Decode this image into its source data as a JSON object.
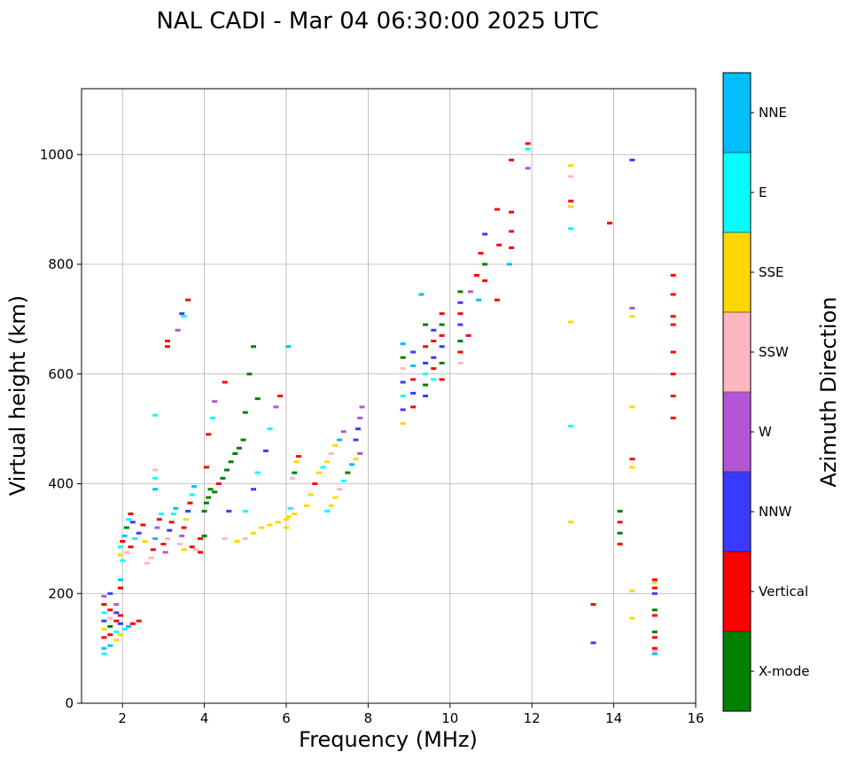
{
  "chart_data": {
    "type": "scatter",
    "title": "NAL CADI - Mar 04 06:30:00 2025 UTC",
    "xlabel": "Frequency (MHz)",
    "ylabel": "Virtual height (km)",
    "xlim": [
      1,
      16
    ],
    "ylim": [
      0,
      1120
    ],
    "xticks": [
      2,
      4,
      6,
      8,
      10,
      12,
      14,
      16
    ],
    "yticks": [
      0,
      200,
      400,
      600,
      800,
      1000
    ],
    "grid": true,
    "colorbar": {
      "label": "Azimuth Direction",
      "categories": [
        {
          "name": "X-mode",
          "color": "#008000"
        },
        {
          "name": "Vertical",
          "color": "#ff0000"
        },
        {
          "name": "NNW",
          "color": "#3a3aff"
        },
        {
          "name": "W",
          "color": "#b455d6"
        },
        {
          "name": "SSW",
          "color": "#ffb6c1"
        },
        {
          "name": "SSE",
          "color": "#ffd700"
        },
        {
          "name": "E",
          "color": "#00ffff"
        },
        {
          "name": "NNE",
          "color": "#00bfff"
        }
      ]
    },
    "trace_columns": [
      "frequency_mhz",
      "height_km",
      "direction"
    ],
    "points": [
      [
        1.55,
        90,
        "E"
      ],
      [
        1.55,
        100,
        "NNE"
      ],
      [
        1.55,
        120,
        "Vertical"
      ],
      [
        1.55,
        135,
        "SSE"
      ],
      [
        1.55,
        150,
        "NNW"
      ],
      [
        1.55,
        165,
        "E"
      ],
      [
        1.55,
        180,
        "Vertical"
      ],
      [
        1.55,
        195,
        "W"
      ],
      [
        1.7,
        105,
        "NNE"
      ],
      [
        1.7,
        125,
        "Vertical"
      ],
      [
        1.7,
        140,
        "X-mode"
      ],
      [
        1.7,
        155,
        "SSW"
      ],
      [
        1.7,
        170,
        "Vertical"
      ],
      [
        1.7,
        200,
        "NNW"
      ],
      [
        1.85,
        115,
        "SSE"
      ],
      [
        1.85,
        130,
        "E"
      ],
      [
        1.85,
        150,
        "Vertical"
      ],
      [
        1.85,
        165,
        "NNW"
      ],
      [
        1.85,
        180,
        "W"
      ],
      [
        1.95,
        125,
        "SSE"
      ],
      [
        1.95,
        145,
        "NNW"
      ],
      [
        1.95,
        160,
        "Vertical"
      ],
      [
        1.95,
        210,
        "Vertical"
      ],
      [
        1.95,
        225,
        "NNE"
      ],
      [
        2.05,
        135,
        "E"
      ],
      [
        2.15,
        140,
        "NNE"
      ],
      [
        2.25,
        145,
        "Vertical"
      ],
      [
        2.4,
        150,
        "Vertical"
      ],
      [
        1.95,
        270,
        "SSE"
      ],
      [
        1.95,
        285,
        "E"
      ],
      [
        2.0,
        295,
        "Vertical"
      ],
      [
        2.05,
        305,
        "NNE"
      ],
      [
        2.1,
        320,
        "X-mode"
      ],
      [
        2.15,
        335,
        "E"
      ],
      [
        2.2,
        345,
        "Vertical"
      ],
      [
        2.25,
        330,
        "NNW"
      ],
      [
        2.0,
        260,
        "E"
      ],
      [
        2.1,
        275,
        "SSW"
      ],
      [
        2.2,
        285,
        "Vertical"
      ],
      [
        2.3,
        300,
        "E"
      ],
      [
        2.4,
        310,
        "NNW"
      ],
      [
        2.5,
        325,
        "Vertical"
      ],
      [
        2.55,
        295,
        "SSE"
      ],
      [
        2.6,
        255,
        "SSW"
      ],
      [
        2.7,
        265,
        "SSW"
      ],
      [
        2.75,
        280,
        "Vertical"
      ],
      [
        2.8,
        300,
        "NNE"
      ],
      [
        2.85,
        320,
        "W"
      ],
      [
        2.9,
        335,
        "Vertical"
      ],
      [
        2.95,
        345,
        "E"
      ],
      [
        3.0,
        290,
        "Vertical"
      ],
      [
        3.05,
        275,
        "W"
      ],
      [
        3.1,
        300,
        "SSW"
      ],
      [
        3.15,
        315,
        "NNW"
      ],
      [
        3.2,
        330,
        "Vertical"
      ],
      [
        3.25,
        345,
        "E"
      ],
      [
        3.3,
        355,
        "NNE"
      ],
      [
        3.4,
        290,
        "SSW"
      ],
      [
        3.45,
        305,
        "W"
      ],
      [
        3.5,
        320,
        "Vertical"
      ],
      [
        3.55,
        335,
        "SSE"
      ],
      [
        3.6,
        350,
        "NNW"
      ],
      [
        3.65,
        365,
        "Vertical"
      ],
      [
        3.7,
        380,
        "E"
      ],
      [
        3.75,
        395,
        "NNE"
      ],
      [
        3.5,
        280,
        "SSE"
      ],
      [
        3.7,
        285,
        "Vertical"
      ],
      [
        3.8,
        280,
        "SSW"
      ],
      [
        3.9,
        275,
        "Vertical"
      ],
      [
        2.8,
        390,
        "NNE"
      ],
      [
        2.8,
        410,
        "E"
      ],
      [
        2.8,
        425,
        "SSW"
      ],
      [
        2.8,
        525,
        "E"
      ],
      [
        3.1,
        650,
        "Vertical"
      ],
      [
        3.1,
        660,
        "Vertical"
      ],
      [
        3.35,
        680,
        "W"
      ],
      [
        3.45,
        710,
        "NNW"
      ],
      [
        3.5,
        705,
        "E"
      ],
      [
        3.6,
        735,
        "Vertical"
      ],
      [
        3.9,
        300,
        "Vertical"
      ],
      [
        4.0,
        305,
        "X-mode"
      ],
      [
        4.0,
        350,
        "X-mode"
      ],
      [
        4.05,
        365,
        "X-mode"
      ],
      [
        4.1,
        375,
        "X-mode"
      ],
      [
        4.15,
        390,
        "X-mode"
      ],
      [
        4.25,
        385,
        "X-mode"
      ],
      [
        4.35,
        400,
        "Vertical"
      ],
      [
        4.45,
        410,
        "X-mode"
      ],
      [
        4.55,
        425,
        "X-mode"
      ],
      [
        4.65,
        440,
        "X-mode"
      ],
      [
        4.75,
        455,
        "X-mode"
      ],
      [
        4.85,
        465,
        "X-mode"
      ],
      [
        4.95,
        480,
        "X-mode"
      ],
      [
        4.05,
        430,
        "Vertical"
      ],
      [
        4.1,
        490,
        "Vertical"
      ],
      [
        4.2,
        520,
        "E"
      ],
      [
        4.25,
        550,
        "W"
      ],
      [
        4.5,
        585,
        "Vertical"
      ],
      [
        4.6,
        350,
        "NNW"
      ],
      [
        4.5,
        300,
        "SSW"
      ],
      [
        4.8,
        295,
        "SSE"
      ],
      [
        5.0,
        300,
        "SSW"
      ],
      [
        5.2,
        310,
        "SSE"
      ],
      [
        5.4,
        320,
        "SSE"
      ],
      [
        5.6,
        325,
        "SSE"
      ],
      [
        5.8,
        330,
        "SSE"
      ],
      [
        6.0,
        335,
        "SSE"
      ],
      [
        6.2,
        345,
        "SSE"
      ],
      [
        5.0,
        350,
        "E"
      ],
      [
        5.2,
        390,
        "NNW"
      ],
      [
        5.3,
        420,
        "E"
      ],
      [
        5.5,
        460,
        "NNW"
      ],
      [
        5.6,
        500,
        "E"
      ],
      [
        5.75,
        540,
        "W"
      ],
      [
        5.85,
        560,
        "Vertical"
      ],
      [
        5.0,
        530,
        "X-mode"
      ],
      [
        5.1,
        600,
        "X-mode"
      ],
      [
        5.2,
        650,
        "X-mode"
      ],
      [
        5.3,
        555,
        "X-mode"
      ],
      [
        6.0,
        320,
        "SSE"
      ],
      [
        6.05,
        340,
        "SSE"
      ],
      [
        6.1,
        355,
        "E"
      ],
      [
        6.15,
        410,
        "SSW"
      ],
      [
        6.2,
        420,
        "X-mode"
      ],
      [
        6.25,
        440,
        "SSE"
      ],
      [
        6.3,
        450,
        "Vertical"
      ],
      [
        6.05,
        650,
        "NNE"
      ],
      [
        6.5,
        360,
        "SSE"
      ],
      [
        6.6,
        380,
        "SSE"
      ],
      [
        6.7,
        400,
        "Vertical"
      ],
      [
        6.8,
        420,
        "SSE"
      ],
      [
        6.9,
        430,
        "E"
      ],
      [
        7.0,
        440,
        "SSE"
      ],
      [
        7.1,
        455,
        "SSW"
      ],
      [
        7.2,
        470,
        "SSE"
      ],
      [
        7.3,
        480,
        "NNE"
      ],
      [
        7.4,
        495,
        "W"
      ],
      [
        7.0,
        350,
        "E"
      ],
      [
        7.1,
        360,
        "SSE"
      ],
      [
        7.2,
        375,
        "SSE"
      ],
      [
        7.3,
        390,
        "SSW"
      ],
      [
        7.4,
        405,
        "E"
      ],
      [
        7.5,
        420,
        "X-mode"
      ],
      [
        7.6,
        435,
        "NNE"
      ],
      [
        7.7,
        445,
        "SSE"
      ],
      [
        7.8,
        455,
        "W"
      ],
      [
        7.7,
        480,
        "NNW"
      ],
      [
        7.75,
        500,
        "NNW"
      ],
      [
        7.8,
        520,
        "W"
      ],
      [
        7.85,
        540,
        "W"
      ],
      [
        8.85,
        510,
        "SSE"
      ],
      [
        8.85,
        535,
        "NNW"
      ],
      [
        8.85,
        560,
        "E"
      ],
      [
        8.85,
        585,
        "NNW"
      ],
      [
        8.85,
        610,
        "SSW"
      ],
      [
        8.85,
        630,
        "X-mode"
      ],
      [
        8.85,
        655,
        "NNE"
      ],
      [
        9.1,
        540,
        "Vertical"
      ],
      [
        9.1,
        565,
        "NNW"
      ],
      [
        9.1,
        590,
        "Vertical"
      ],
      [
        9.1,
        615,
        "NNE"
      ],
      [
        9.1,
        640,
        "NNW"
      ],
      [
        9.4,
        560,
        "NNW"
      ],
      [
        9.4,
        580,
        "X-mode"
      ],
      [
        9.4,
        600,
        "E"
      ],
      [
        9.4,
        620,
        "NNW"
      ],
      [
        9.4,
        650,
        "Vertical"
      ],
      [
        9.4,
        690,
        "X-mode"
      ],
      [
        9.6,
        590,
        "E"
      ],
      [
        9.6,
        610,
        "Vertical"
      ],
      [
        9.6,
        630,
        "NNW"
      ],
      [
        9.6,
        660,
        "Vertical"
      ],
      [
        9.6,
        680,
        "NNW"
      ],
      [
        9.8,
        590,
        "Vertical"
      ],
      [
        9.8,
        620,
        "X-mode"
      ],
      [
        9.8,
        650,
        "NNW"
      ],
      [
        9.8,
        670,
        "Vertical"
      ],
      [
        9.8,
        690,
        "X-mode"
      ],
      [
        9.8,
        710,
        "Vertical"
      ],
      [
        9.3,
        745,
        "NNE"
      ],
      [
        10.25,
        620,
        "SSW"
      ],
      [
        10.25,
        640,
        "Vertical"
      ],
      [
        10.25,
        660,
        "X-mode"
      ],
      [
        10.25,
        690,
        "NNW"
      ],
      [
        10.25,
        710,
        "Vertical"
      ],
      [
        10.25,
        730,
        "NNW"
      ],
      [
        10.25,
        750,
        "X-mode"
      ],
      [
        10.45,
        670,
        "Vertical"
      ],
      [
        10.5,
        750,
        "W"
      ],
      [
        10.65,
        780,
        "Vertical"
      ],
      [
        10.7,
        735,
        "NNE"
      ],
      [
        10.75,
        820,
        "Vertical"
      ],
      [
        10.85,
        770,
        "Vertical"
      ],
      [
        10.85,
        800,
        "X-mode"
      ],
      [
        10.85,
        855,
        "NNW"
      ],
      [
        11.15,
        735,
        "Vertical"
      ],
      [
        11.2,
        835,
        "Vertical"
      ],
      [
        11.15,
        900,
        "Vertical"
      ],
      [
        11.45,
        800,
        "NNE"
      ],
      [
        11.5,
        830,
        "Vertical"
      ],
      [
        11.5,
        860,
        "Vertical"
      ],
      [
        11.5,
        895,
        "Vertical"
      ],
      [
        11.5,
        990,
        "Vertical"
      ],
      [
        11.9,
        975,
        "W"
      ],
      [
        11.9,
        1010,
        "E"
      ],
      [
        11.9,
        1020,
        "Vertical"
      ],
      [
        12.95,
        330,
        "SSE"
      ],
      [
        12.95,
        505,
        "E"
      ],
      [
        12.95,
        695,
        "SSE"
      ],
      [
        12.95,
        865,
        "E"
      ],
      [
        12.95,
        905,
        "SSE"
      ],
      [
        12.95,
        915,
        "Vertical"
      ],
      [
        12.95,
        960,
        "SSW"
      ],
      [
        12.95,
        980,
        "SSE"
      ],
      [
        13.5,
        110,
        "NNW"
      ],
      [
        13.5,
        180,
        "Vertical"
      ],
      [
        13.9,
        875,
        "Vertical"
      ],
      [
        14.15,
        290,
        "Vertical"
      ],
      [
        14.15,
        310,
        "X-mode"
      ],
      [
        14.15,
        330,
        "Vertical"
      ],
      [
        14.15,
        350,
        "X-mode"
      ],
      [
        14.45,
        155,
        "SSE"
      ],
      [
        14.45,
        205,
        "SSE"
      ],
      [
        14.45,
        430,
        "SSE"
      ],
      [
        14.45,
        445,
        "Vertical"
      ],
      [
        14.45,
        540,
        "SSE"
      ],
      [
        14.45,
        705,
        "SSE"
      ],
      [
        14.45,
        720,
        "W"
      ],
      [
        14.45,
        990,
        "NNW"
      ],
      [
        15.0,
        90,
        "NNE"
      ],
      [
        15.0,
        95,
        "SSW"
      ],
      [
        15.0,
        100,
        "Vertical"
      ],
      [
        15.0,
        120,
        "Vertical"
      ],
      [
        15.0,
        130,
        "X-mode"
      ],
      [
        15.0,
        160,
        "Vertical"
      ],
      [
        15.0,
        170,
        "X-mode"
      ],
      [
        15.0,
        200,
        "NNW"
      ],
      [
        15.0,
        210,
        "Vertical"
      ],
      [
        15.0,
        220,
        "SSE"
      ],
      [
        15.0,
        225,
        "Vertical"
      ],
      [
        15.45,
        520,
        "Vertical"
      ],
      [
        15.45,
        560,
        "Vertical"
      ],
      [
        15.45,
        600,
        "Vertical"
      ],
      [
        15.45,
        640,
        "Vertical"
      ],
      [
        15.45,
        690,
        "Vertical"
      ],
      [
        15.45,
        705,
        "Vertical"
      ],
      [
        15.45,
        745,
        "Vertical"
      ],
      [
        15.45,
        780,
        "Vertical"
      ]
    ]
  }
}
